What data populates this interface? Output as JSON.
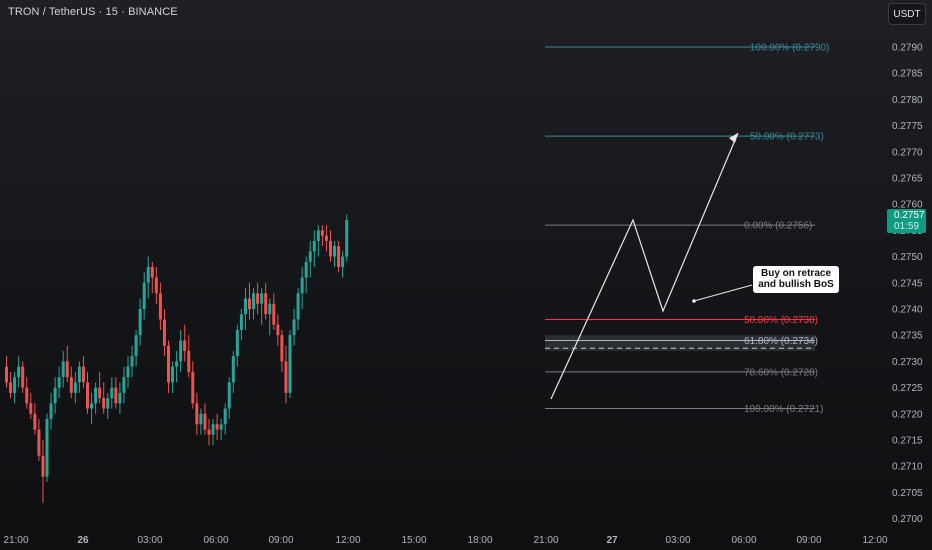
{
  "header": {
    "symbol_title": "TRON / TetherUS · 15 · BINANCE",
    "currency_button": "USDT"
  },
  "price_tag": {
    "price": "0.2757",
    "countdown": "01:59",
    "color": "#0f9a82"
  },
  "annotation": {
    "line1": "Buy  on retrace",
    "line2": "and bullish BoS"
  },
  "colors": {
    "up": "#26a69a",
    "down": "#ef5350",
    "fib_teal": "#3a8a98",
    "fib_gray": "#7a7d86",
    "fib_red": "#f23645"
  },
  "chart_data": {
    "type": "candlestick",
    "symbol": "TRON / TetherUS",
    "interval": "15",
    "exchange": "BINANCE",
    "y_ticks": [
      "0.2790",
      "0.2785",
      "0.2780",
      "0.2775",
      "0.2770",
      "0.2765",
      "0.2760",
      "0.2755",
      "0.2750",
      "0.2745",
      "0.2740",
      "0.2735",
      "0.2730",
      "0.2725",
      "0.2720",
      "0.2715",
      "0.2710",
      "0.2705",
      "0.2700"
    ],
    "x_ticks": [
      "21:00",
      "26",
      "03:00",
      "06:00",
      "09:00",
      "12:00",
      "15:00",
      "18:00",
      "21:00",
      "27",
      "03:00",
      "06:00",
      "09:00",
      "12:00"
    ],
    "ylim": [
      0.2698,
      0.2798
    ],
    "last_price": 0.2757,
    "fib_levels": [
      {
        "label": "−100.00% (0.2790)",
        "price": 0.279,
        "color": "#3a8a98"
      },
      {
        "label": "−50.00% (0.2773)",
        "price": 0.2773,
        "color": "#3a8a98"
      },
      {
        "label": "0.00% (0.2756)",
        "price": 0.2756,
        "color": "#7a7d86"
      },
      {
        "label": "50.00% (0.2738)",
        "price": 0.2738,
        "color": "#f23645"
      },
      {
        "label": "61.80% (0.2734)",
        "price": 0.2734,
        "color": "#b2b5be"
      },
      {
        "label": "78.60% (0.2728)",
        "price": 0.2728,
        "color": "#7a7d86"
      },
      {
        "label": "100.00% (0.2721)",
        "price": 0.2721,
        "color": "#7a7d86"
      }
    ],
    "candles": [
      [
        0.2729,
        0.2731,
        0.2725,
        0.2726
      ],
      [
        0.2726,
        0.2728,
        0.2723,
        0.2724
      ],
      [
        0.2724,
        0.2728,
        0.2722,
        0.2727
      ],
      [
        0.2727,
        0.2731,
        0.2725,
        0.2729
      ],
      [
        0.2729,
        0.273,
        0.2724,
        0.2725
      ],
      [
        0.2725,
        0.2727,
        0.2721,
        0.2722
      ],
      [
        0.2722,
        0.2724,
        0.2719,
        0.272
      ],
      [
        0.272,
        0.2722,
        0.2716,
        0.2717
      ],
      [
        0.2717,
        0.2719,
        0.2711,
        0.2712
      ],
      [
        0.2712,
        0.2715,
        0.2703,
        0.2708
      ],
      [
        0.2708,
        0.272,
        0.2707,
        0.2719
      ],
      [
        0.2719,
        0.2724,
        0.2717,
        0.2722
      ],
      [
        0.2722,
        0.2727,
        0.272,
        0.2725
      ],
      [
        0.2725,
        0.2729,
        0.2723,
        0.2727
      ],
      [
        0.2727,
        0.2732,
        0.2725,
        0.273
      ],
      [
        0.273,
        0.2733,
        0.2726,
        0.2727
      ],
      [
        0.2727,
        0.2729,
        0.2723,
        0.2724
      ],
      [
        0.2724,
        0.2728,
        0.2722,
        0.2726
      ],
      [
        0.2726,
        0.273,
        0.2724,
        0.2729
      ],
      [
        0.2729,
        0.2731,
        0.2725,
        0.2726
      ],
      [
        0.2726,
        0.2728,
        0.272,
        0.2721
      ],
      [
        0.2721,
        0.2724,
        0.2718,
        0.2722
      ],
      [
        0.2722,
        0.2726,
        0.272,
        0.2725
      ],
      [
        0.2725,
        0.2728,
        0.2722,
        0.2723
      ],
      [
        0.2723,
        0.2726,
        0.272,
        0.2721
      ],
      [
        0.2721,
        0.2724,
        0.2719,
        0.2723
      ],
      [
        0.2723,
        0.2727,
        0.2721,
        0.2725
      ],
      [
        0.2725,
        0.2727,
        0.2721,
        0.2722
      ],
      [
        0.2722,
        0.2726,
        0.272,
        0.2724
      ],
      [
        0.2724,
        0.2729,
        0.2722,
        0.2727
      ],
      [
        0.2727,
        0.2731,
        0.2725,
        0.2729
      ],
      [
        0.2729,
        0.2733,
        0.2727,
        0.2731
      ],
      [
        0.2731,
        0.2736,
        0.2729,
        0.2735
      ],
      [
        0.2735,
        0.2742,
        0.2733,
        0.274
      ],
      [
        0.274,
        0.2747,
        0.2738,
        0.2745
      ],
      [
        0.2745,
        0.275,
        0.2742,
        0.2748
      ],
      [
        0.2748,
        0.2749,
        0.2743,
        0.2746
      ],
      [
        0.2746,
        0.2748,
        0.2741,
        0.2743
      ],
      [
        0.2743,
        0.2745,
        0.2736,
        0.2738
      ],
      [
        0.2738,
        0.274,
        0.2731,
        0.2733
      ],
      [
        0.2733,
        0.2734,
        0.2724,
        0.2726
      ],
      [
        0.2726,
        0.273,
        0.2724,
        0.2729
      ],
      [
        0.2729,
        0.2732,
        0.2726,
        0.273
      ],
      [
        0.273,
        0.2736,
        0.2728,
        0.2734
      ],
      [
        0.2734,
        0.2737,
        0.273,
        0.2732
      ],
      [
        0.2732,
        0.2735,
        0.2727,
        0.2728
      ],
      [
        0.2728,
        0.273,
        0.2721,
        0.2722
      ],
      [
        0.2722,
        0.2724,
        0.2716,
        0.2718
      ],
      [
        0.2718,
        0.2721,
        0.2716,
        0.272
      ],
      [
        0.272,
        0.2722,
        0.2716,
        0.2717
      ],
      [
        0.2717,
        0.2719,
        0.2714,
        0.2716
      ],
      [
        0.2716,
        0.2719,
        0.2714,
        0.2718
      ],
      [
        0.2718,
        0.272,
        0.2715,
        0.2717
      ],
      [
        0.2717,
        0.2719,
        0.2715,
        0.2718
      ],
      [
        0.2718,
        0.2722,
        0.2716,
        0.2721
      ],
      [
        0.2721,
        0.2727,
        0.2719,
        0.2726
      ],
      [
        0.2726,
        0.2732,
        0.2724,
        0.2731
      ],
      [
        0.2731,
        0.2737,
        0.2729,
        0.2736
      ],
      [
        0.2736,
        0.274,
        0.2734,
        0.2739
      ],
      [
        0.2739,
        0.2744,
        0.2736,
        0.2742
      ],
      [
        0.2742,
        0.2745,
        0.2738,
        0.274
      ],
      [
        0.274,
        0.2744,
        0.2738,
        0.2743
      ],
      [
        0.2743,
        0.2745,
        0.2739,
        0.2741
      ],
      [
        0.2741,
        0.2744,
        0.2737,
        0.2743
      ],
      [
        0.2743,
        0.2745,
        0.2738,
        0.2739
      ],
      [
        0.2739,
        0.2742,
        0.2735,
        0.2741
      ],
      [
        0.2741,
        0.2743,
        0.2736,
        0.2737
      ],
      [
        0.2737,
        0.2739,
        0.2733,
        0.2735
      ],
      [
        0.2735,
        0.2736,
        0.2728,
        0.273
      ],
      [
        0.273,
        0.2733,
        0.2722,
        0.2724
      ],
      [
        0.2724,
        0.2736,
        0.2723,
        0.2735
      ],
      [
        0.2735,
        0.274,
        0.2733,
        0.2738
      ],
      [
        0.2738,
        0.2744,
        0.2736,
        0.2743
      ],
      [
        0.2743,
        0.2748,
        0.274,
        0.2746
      ],
      [
        0.2746,
        0.275,
        0.2743,
        0.2749
      ],
      [
        0.2749,
        0.2753,
        0.2746,
        0.2751
      ],
      [
        0.2751,
        0.2755,
        0.2748,
        0.2753
      ],
      [
        0.2753,
        0.2756,
        0.275,
        0.2755
      ],
      [
        0.2755,
        0.2756,
        0.2752,
        0.2754
      ],
      [
        0.2754,
        0.2756,
        0.2751,
        0.2753
      ],
      [
        0.2753,
        0.2755,
        0.2749,
        0.275
      ],
      [
        0.275,
        0.2753,
        0.2748,
        0.2752
      ],
      [
        0.2752,
        0.2753,
        0.2747,
        0.2748
      ],
      [
        0.2748,
        0.2751,
        0.2746,
        0.275
      ],
      [
        0.275,
        0.2758,
        0.2749,
        0.2757
      ]
    ]
  }
}
